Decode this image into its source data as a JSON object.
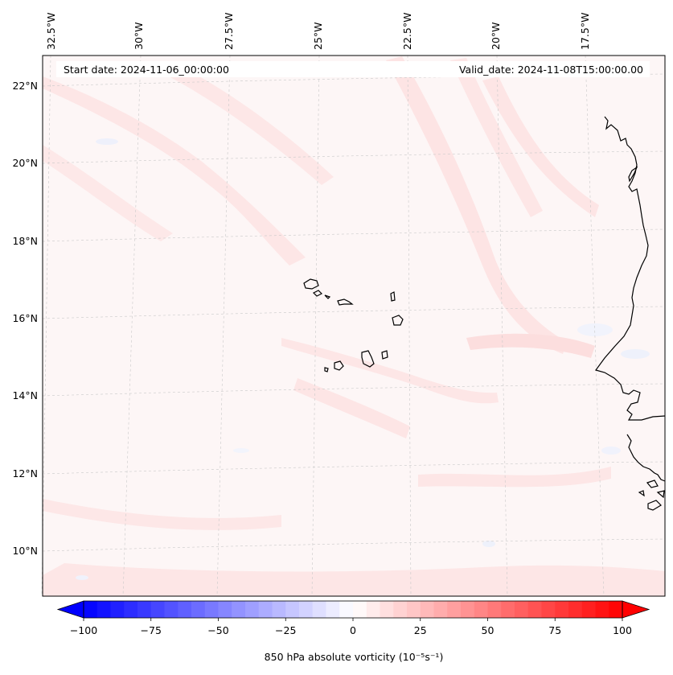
{
  "header": {
    "start_date": "Start date: 2024-11-06_00:00:00",
    "valid_date": "Valid_date: 2024-11-08T15:00:00.00"
  },
  "map": {
    "longitude_labels": [
      "32.5°W",
      "30°W",
      "27.5°W",
      "25°W",
      "22.5°W",
      "20°W",
      "17.5°W"
    ],
    "latitude_labels": [
      "22°N",
      "20°N",
      "18°N",
      "16°N",
      "14°N",
      "12°N",
      "10°N"
    ],
    "field": "850 hPa absolute vorticity",
    "background_color": "#fdf5f5",
    "positive_anomaly_color": "#fde3e3",
    "negative_anomaly_color": "#f3f5fd"
  },
  "colorbar": {
    "label": "850 hPa absolute vorticity (10$^{-5}$s$^{-1}$)",
    "label_display": "850 hPa absolute vorticity (10⁻⁵s⁻¹)",
    "tick_labels": [
      "−100",
      "−75",
      "−50",
      "−25",
      "0",
      "25",
      "50",
      "75",
      "100"
    ],
    "tick_values": [
      -100,
      -75,
      -50,
      -25,
      0,
      25,
      50,
      75,
      100
    ],
    "min": -100,
    "max": 100,
    "levels": 40,
    "colormap": "bwr",
    "extend": "both"
  }
}
